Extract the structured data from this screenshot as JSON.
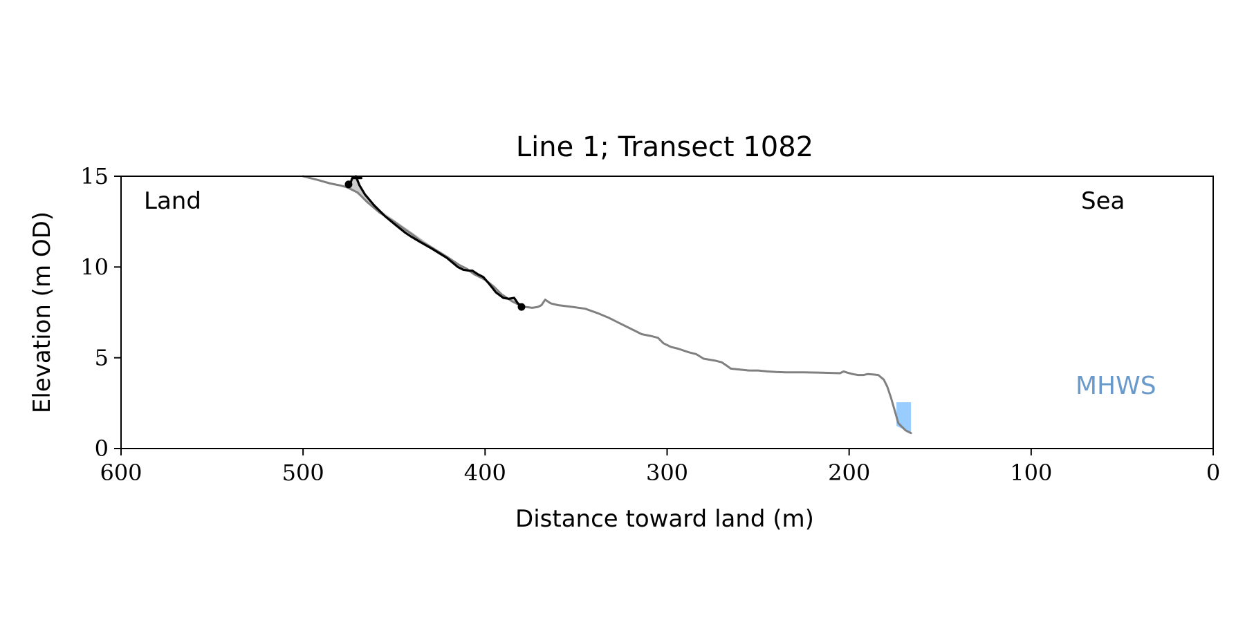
{
  "chart_data": {
    "type": "line",
    "title": "Line 1; Transect 1082",
    "xlabel": "Distance toward land (m)",
    "ylabel": "Elevation (m OD)",
    "xlim": [
      600,
      0
    ],
    "ylim": [
      0,
      15
    ],
    "xticks": [
      600,
      500,
      400,
      300,
      200,
      100,
      0
    ],
    "yticks": [
      0,
      5,
      10,
      15
    ],
    "xtick_labels": [
      "600",
      "500",
      "400",
      "300",
      "200",
      "100",
      "0"
    ],
    "ytick_labels": [
      "0",
      "5",
      "10",
      "15"
    ],
    "grid": false,
    "annotations": {
      "land": "Land",
      "sea": "Sea",
      "mhws": "MHWS"
    },
    "colors": {
      "profile": "#808080",
      "cliff": "#000000",
      "shade": "#cccccc",
      "water": "#99ccff",
      "mhws_text": "#6a9acb"
    },
    "series": [
      {
        "role": "profile",
        "x": [
          500,
          492,
          485,
          480,
          476,
          470,
          465,
          458,
          450,
          443,
          440,
          435,
          428,
          420,
          414,
          410,
          406,
          400,
          395,
          391,
          388,
          385,
          381,
          378,
          374,
          371,
          369,
          367,
          364,
          360,
          352,
          345,
          338,
          332,
          326,
          320,
          314,
          309,
          305,
          302,
          298,
          294,
          288,
          284,
          280,
          274,
          270,
          267,
          265,
          260,
          255,
          250,
          245,
          240,
          235,
          225,
          215,
          205,
          203,
          201,
          198,
          195,
          192,
          190,
          187,
          184,
          181,
          179,
          177,
          175,
          173,
          171,
          169,
          167,
          166
        ],
        "y": [
          15.0,
          14.8,
          14.6,
          14.5,
          14.4,
          14.1,
          13.6,
          13.0,
          12.5,
          12.0,
          11.8,
          11.4,
          11.0,
          10.5,
          10.1,
          9.9,
          9.6,
          9.3,
          8.9,
          8.5,
          8.3,
          8.1,
          7.9,
          7.8,
          7.75,
          7.8,
          7.9,
          8.2,
          8.0,
          7.9,
          7.8,
          7.7,
          7.45,
          7.2,
          6.9,
          6.6,
          6.3,
          6.2,
          6.1,
          5.8,
          5.6,
          5.5,
          5.3,
          5.2,
          4.95,
          4.85,
          4.75,
          4.55,
          4.4,
          4.35,
          4.3,
          4.3,
          4.25,
          4.22,
          4.2,
          4.2,
          4.18,
          4.15,
          4.25,
          4.18,
          4.1,
          4.05,
          4.05,
          4.1,
          4.08,
          4.05,
          3.8,
          3.4,
          2.8,
          2.1,
          1.4,
          1.2,
          1.0,
          0.9,
          0.85
        ]
      },
      {
        "role": "cliff",
        "x": [
          471,
          469,
          466,
          461,
          455,
          449,
          444,
          441,
          436,
          429,
          421,
          415,
          412,
          409,
          407,
          404,
          401,
          398,
          394,
          390,
          387,
          384,
          382,
          380
        ],
        "y": [
          15.0,
          14.5,
          14.0,
          13.4,
          12.8,
          12.3,
          11.9,
          11.7,
          11.4,
          11.0,
          10.5,
          10.0,
          9.85,
          9.8,
          9.8,
          9.6,
          9.45,
          9.1,
          8.6,
          8.3,
          8.25,
          8.3,
          8.0,
          7.85
        ]
      },
      {
        "role": "cliff-top",
        "x": [
          475,
          474,
          473,
          468
        ],
        "y": [
          14.55,
          14.6,
          14.9,
          14.9
        ]
      }
    ],
    "markers": [
      {
        "x": 475,
        "y": 14.55
      },
      {
        "x": 380,
        "y": 7.8
      }
    ],
    "shaded_region": {
      "upper": {
        "x": [
          476,
          471,
          469,
          466,
          461,
          455,
          449,
          444,
          441,
          436,
          429,
          421,
          415,
          412,
          409,
          407,
          404,
          401,
          398,
          394,
          390,
          387,
          384,
          382,
          380
        ],
        "y": [
          14.6,
          15.0,
          14.5,
          14.0,
          13.4,
          12.8,
          12.3,
          11.9,
          11.7,
          11.4,
          11.0,
          10.5,
          10.0,
          9.85,
          9.8,
          9.8,
          9.6,
          9.45,
          9.1,
          8.6,
          8.3,
          8.25,
          8.3,
          8.0,
          7.85
        ]
      },
      "lower": {
        "x": [
          380,
          390,
          400,
          410,
          420,
          430,
          440,
          450,
          460,
          470,
          476
        ],
        "y": [
          7.85,
          8.4,
          9.2,
          9.9,
          10.5,
          11.2,
          11.9,
          12.6,
          13.3,
          14.0,
          14.6
        ]
      }
    },
    "water": {
      "x_from": 174,
      "x_to": 166,
      "y_top": 2.55,
      "bottom_y": [
        1.25,
        0.85
      ]
    },
    "mhws_level": 2.55
  }
}
